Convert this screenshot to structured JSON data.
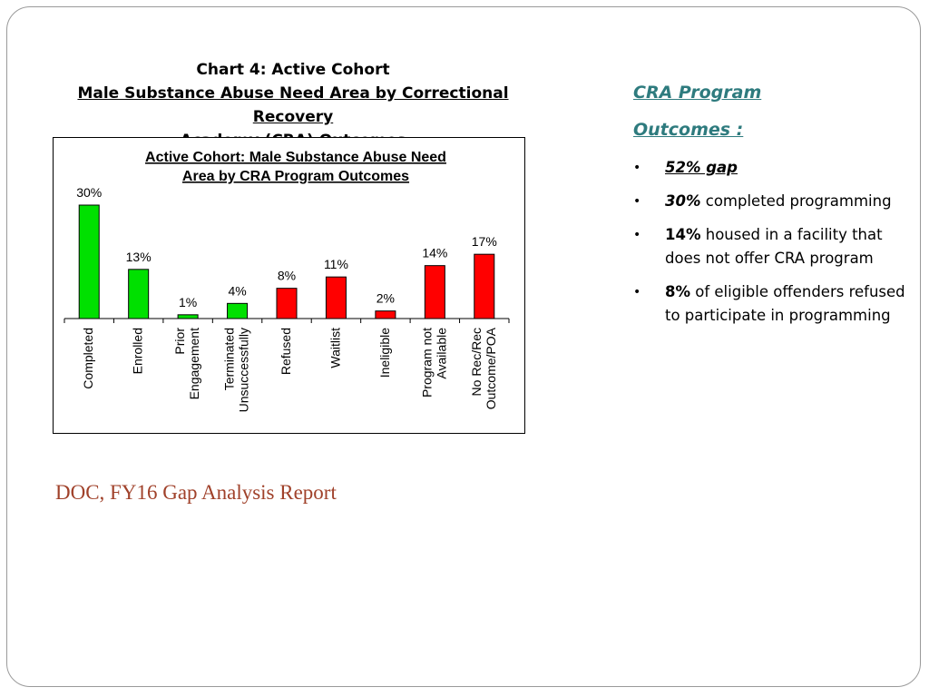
{
  "chart_heading": {
    "line1": "Chart 4: Active Cohort",
    "line2": "Male Substance Abuse Need Area by Correctional Recovery",
    "line3": "Academy (CRA) Outcomes"
  },
  "chart_data": {
    "type": "bar",
    "title_lines": [
      "Active Cohort: Male Substance Abuse Need",
      "Area by CRA Program Outcomes"
    ],
    "categories": [
      [
        "Completed"
      ],
      [
        "Enrolled"
      ],
      [
        "Prior",
        "Engagement"
      ],
      [
        "Terminated",
        "Unsuccessfully"
      ],
      [
        "Refused"
      ],
      [
        "Waitlist"
      ],
      [
        "Ineligible"
      ],
      [
        "Program not",
        "Available"
      ],
      [
        "No Rec/Rec",
        "Outcome/POA"
      ]
    ],
    "values": [
      30,
      13,
      1,
      4,
      8,
      11,
      2,
      14,
      17
    ],
    "data_labels": [
      "30%",
      "13%",
      "1%",
      "4%",
      "8%",
      "11%",
      "2%",
      "14%",
      "17%"
    ],
    "colors": [
      "#00e000",
      "#00e000",
      "#00e000",
      "#00e000",
      "#ff0000",
      "#ff0000",
      "#ff0000",
      "#ff0000",
      "#ff0000"
    ],
    "ylim": [
      0,
      30
    ],
    "grid": false,
    "legend": "none"
  },
  "outcomes": {
    "heading_line1": "CRA Program",
    "heading_line2": "Outcomes :",
    "bullet_glyph": "•",
    "b1": {
      "bold": "52% gap"
    },
    "b2": {
      "bold": "30%",
      "rest": " completed programming"
    },
    "b3": {
      "bold": "14%",
      "rest": " housed in a facility that does not offer CRA program"
    },
    "b4": {
      "bold": "8%",
      "rest": " of eligible offenders refused to participate in programming"
    }
  },
  "source": "DOC, FY16 Gap Analysis Report"
}
